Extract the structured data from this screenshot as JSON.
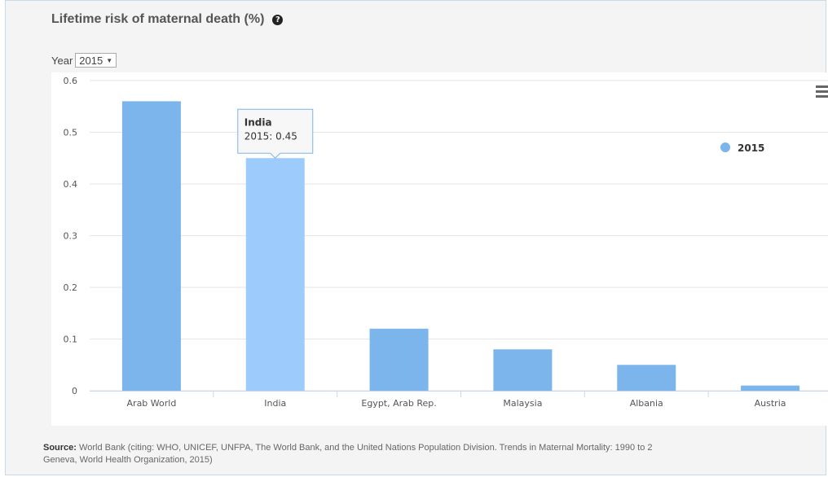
{
  "title": "Lifetime risk of maternal death (%)",
  "help_icon": "question-circle-icon",
  "year": {
    "label": "Year",
    "selected": "2015"
  },
  "tooltip": {
    "country": "India",
    "text": "2015: 0.45"
  },
  "legend": {
    "label": "2015",
    "color": "#7cb5ec"
  },
  "menu_icon": "hamburger-menu-icon",
  "source": {
    "label": "Source:",
    "line1": "World Bank (citing: WHO, UNICEF, UNFPA, The World Bank, and the United Nations Population Division. Trends in Maternal Mortality: 1990 to 2",
    "line2": "Geneva, World Health Organization, 2015)"
  },
  "chart_data": {
    "type": "bar",
    "categories": [
      "Arab World",
      "India",
      "Egypt, Arab Rep.",
      "Malaysia",
      "Albania",
      "Austria"
    ],
    "series": [
      {
        "name": "2015",
        "values": [
          0.56,
          0.45,
          0.12,
          0.08,
          0.05,
          0.01
        ]
      }
    ],
    "ylim": [
      0,
      0.6
    ],
    "yticks": [
      "0",
      "0.1",
      "0.2",
      "0.3",
      "0.4",
      "0.5",
      "0.6"
    ],
    "grid": true,
    "legend_position": "top-right",
    "highlighted": "India",
    "colors": {
      "bar": "#7cb5ec",
      "bar_highlight": "#9dcbfb"
    }
  }
}
